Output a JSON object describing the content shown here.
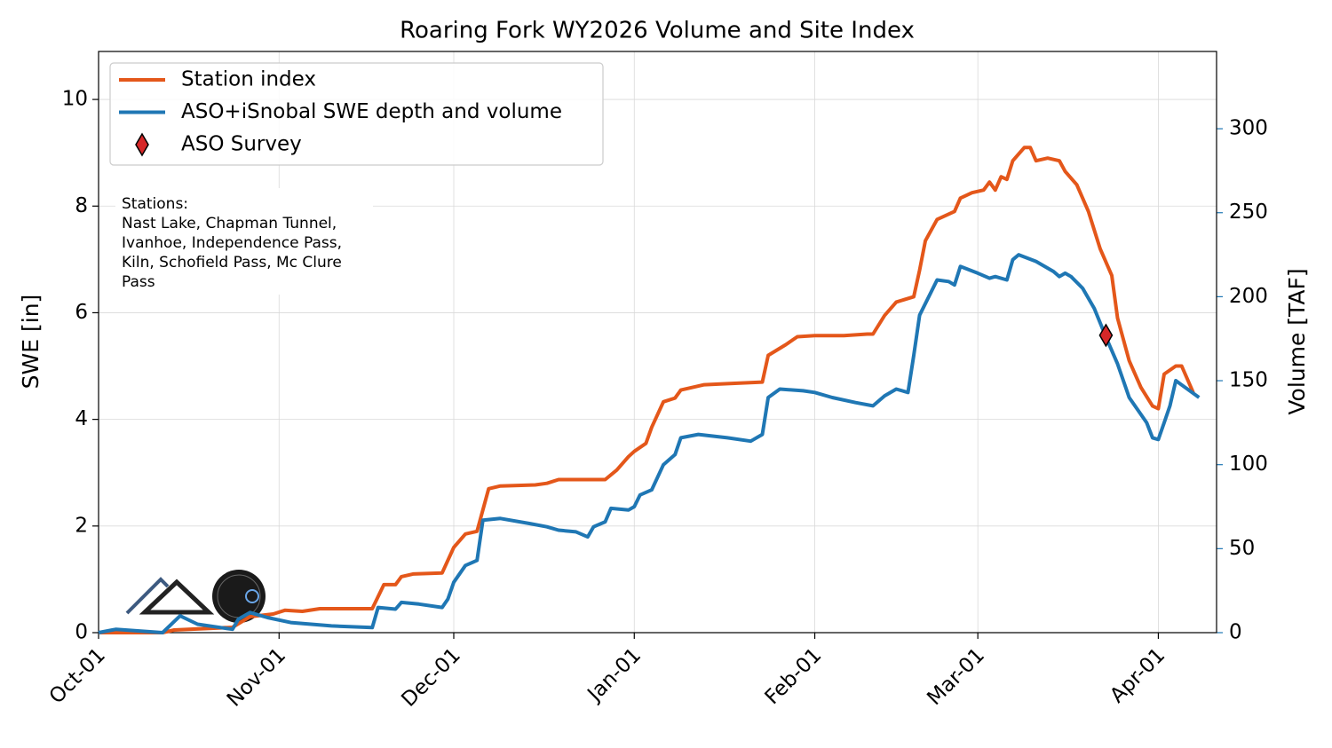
{
  "chart_data": {
    "type": "line",
    "title": "Roaring Fork WY2026 Volume and Site Index",
    "y_label": "SWE [in]",
    "y2_label": "Volume [TAF]",
    "xlim": [
      "10-01",
      "04-11"
    ],
    "xticks": [
      {
        "value": "10-01",
        "label": "Oct-01"
      },
      {
        "value": "11-01",
        "label": "Nov-01"
      },
      {
        "value": "12-01",
        "label": "Dec-01"
      },
      {
        "value": "01-01",
        "label": "Jan-01"
      },
      {
        "value": "02-01",
        "label": "Feb-01"
      },
      {
        "value": "03-01",
        "label": "Mar-01"
      },
      {
        "value": "04-01",
        "label": "Apr-01"
      }
    ],
    "ylim": [
      0,
      10.9
    ],
    "yticks": [
      0,
      2,
      4,
      6,
      8,
      10
    ],
    "y2lim": [
      0,
      346
    ],
    "y2ticks": [
      0,
      50,
      100,
      150,
      200,
      250,
      300
    ],
    "y2_color": "#1f77b4",
    "grid": true,
    "legend": "upper left",
    "annotation": [
      "Stations:",
      "Nast Lake, Chapman Tunnel,",
      "Ivanhoe, Independence Pass,",
      "Kiln, Schofield Pass, Mc Clure",
      "Pass"
    ],
    "series": [
      {
        "name": "Station index",
        "color": "#e4571a",
        "axis": "y",
        "marker": "line",
        "x": [
          "10-01",
          "10-12",
          "10-14",
          "10-24",
          "10-27",
          "10-31",
          "11-02",
          "11-05",
          "11-08",
          "11-17",
          "11-19",
          "11-21",
          "11-22",
          "11-24",
          "11-29",
          "12-01",
          "12-03",
          "12-05",
          "12-07",
          "12-09",
          "12-15",
          "12-17",
          "12-19",
          "12-27",
          "12-29",
          "12-31",
          "01-01",
          "01-03",
          "01-04",
          "01-06",
          "01-08",
          "01-09",
          "01-13",
          "01-17",
          "01-23",
          "01-24",
          "01-27",
          "01-29",
          "02-01",
          "02-06",
          "02-10",
          "02-11",
          "02-13",
          "02-15",
          "02-18",
          "02-19",
          "02-20",
          "02-22",
          "02-25",
          "02-26",
          "02-28",
          "03-02",
          "03-03",
          "03-04",
          "03-05",
          "03-06",
          "03-07",
          "03-09",
          "03-10",
          "03-11",
          "03-13",
          "03-15",
          "03-16",
          "03-18",
          "03-20",
          "03-22",
          "03-24",
          "03-25",
          "03-27",
          "03-29",
          "03-31",
          "04-01",
          "04-02",
          "04-04",
          "04-05",
          "04-07"
        ],
        "values": [
          0,
          0,
          0.05,
          0.1,
          0.3,
          0.35,
          0.42,
          0.4,
          0.45,
          0.45,
          0.9,
          0.9,
          1.05,
          1.1,
          1.12,
          1.6,
          1.85,
          1.9,
          2.7,
          2.75,
          2.77,
          2.8,
          2.87,
          2.87,
          3.05,
          3.3,
          3.4,
          3.55,
          3.85,
          4.33,
          4.4,
          4.55,
          4.65,
          4.67,
          4.7,
          5.2,
          5.4,
          5.55,
          5.57,
          5.57,
          5.6,
          5.6,
          5.95,
          6.2,
          6.3,
          6.8,
          7.35,
          7.75,
          7.9,
          8.15,
          8.25,
          8.3,
          8.45,
          8.3,
          8.55,
          8.5,
          8.85,
          9.1,
          9.1,
          8.85,
          8.9,
          8.85,
          8.65,
          8.4,
          7.9,
          7.2,
          6.7,
          5.9,
          5.1,
          4.6,
          4.25,
          4.2,
          4.85,
          5.0,
          5.0,
          4.5
        ]
      },
      {
        "name": "ASO+iSnobal SWE depth and volume",
        "color": "#1f77b4",
        "axis": "y2",
        "marker": "line",
        "x": [
          "10-01",
          "10-04",
          "10-12",
          "10-15",
          "10-18",
          "10-22",
          "10-24",
          "10-25",
          "10-27",
          "10-30",
          "11-03",
          "11-10",
          "11-17",
          "11-18",
          "11-21",
          "11-22",
          "11-25",
          "11-29",
          "11-30",
          "12-01",
          "12-03",
          "12-05",
          "12-06",
          "12-09",
          "12-14",
          "12-17",
          "12-19",
          "12-22",
          "12-24",
          "12-25",
          "12-27",
          "12-28",
          "12-31",
          "01-01",
          "01-02",
          "01-04",
          "01-06",
          "01-08",
          "01-09",
          "01-12",
          "01-17",
          "01-21",
          "01-23",
          "01-24",
          "01-26",
          "01-30",
          "02-01",
          "02-04",
          "02-08",
          "02-11",
          "02-13",
          "02-15",
          "02-17",
          "02-18",
          "02-19",
          "02-22",
          "02-24",
          "02-25",
          "02-26",
          "03-01",
          "03-03",
          "03-04",
          "03-06",
          "03-07",
          "03-08",
          "03-11",
          "03-14",
          "03-15",
          "03-16",
          "03-17",
          "03-19",
          "03-21",
          "03-23",
          "03-25",
          "03-27",
          "03-30",
          "03-31",
          "04-01",
          "04-02",
          "04-03",
          "04-04",
          "04-06",
          "04-08"
        ],
        "values": [
          0,
          2,
          0,
          10,
          5,
          3,
          2,
          8,
          12,
          9,
          6,
          4,
          3,
          15,
          14,
          18,
          17,
          15,
          20,
          30,
          40,
          43,
          67,
          68,
          65,
          63,
          61,
          60,
          57,
          63,
          66,
          74,
          73,
          75,
          82,
          85,
          100,
          106,
          116,
          118,
          116,
          114,
          118,
          140,
          145,
          144,
          143,
          140,
          137,
          135,
          141,
          145,
          143,
          165,
          189,
          210,
          209,
          207,
          218,
          214,
          211,
          212,
          210,
          222,
          225,
          221,
          215,
          212,
          214,
          212,
          205,
          193,
          176,
          160,
          140,
          125,
          116,
          115,
          125,
          135,
          150,
          145,
          140
        ]
      },
      {
        "name": "ASO Survey",
        "color": "#d62728",
        "axis": "y2",
        "marker": "diamond",
        "x": [
          "03-23"
        ],
        "values": [
          177
        ]
      }
    ]
  }
}
